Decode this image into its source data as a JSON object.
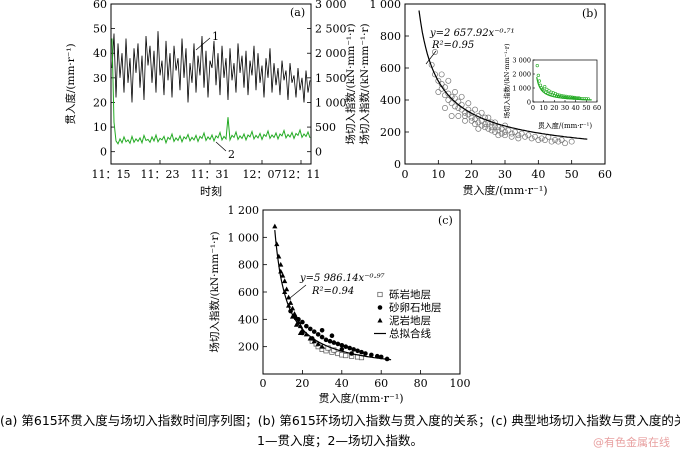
{
  "chart_data": [
    {
      "type": "line",
      "panel_label": "(a)",
      "xlabel": "时刻",
      "ylabel_left": "贯入度/(mm·r⁻¹)",
      "ylabel_right": "场切入指数/(kN·mm⁻¹·r)",
      "x_ticks": [
        "11：15",
        "11：23",
        "11：31",
        "12：07",
        "12：11"
      ],
      "y_left_ticks": [
        0,
        10,
        20,
        30,
        40,
        50,
        60
      ],
      "y_left_lim": [
        -5,
        60
      ],
      "y_right_ticks": [
        0,
        500,
        1000,
        1500,
        2000,
        2500,
        3000
      ],
      "y_right_lim": [
        -250,
        3000
      ],
      "grid": false,
      "series": [
        {
          "name": "1",
          "axis": "left",
          "color": "#000000",
          "values": [
            34,
            48,
            22,
            44,
            30,
            40,
            24,
            46,
            28,
            38,
            20,
            42,
            32,
            44,
            26,
            39,
            21,
            47,
            35,
            43,
            28,
            41,
            24,
            49,
            31,
            37,
            23,
            45,
            29,
            40,
            22,
            43,
            33,
            38,
            25,
            46,
            30,
            42,
            20,
            36,
            28,
            44,
            24,
            39,
            31,
            47,
            26,
            41,
            22,
            37,
            34,
            45,
            27,
            40,
            23,
            43,
            30,
            38,
            21,
            42,
            29,
            36,
            24,
            44,
            32,
            39,
            26,
            41,
            23,
            37,
            31,
            43,
            25,
            40,
            28,
            35,
            22,
            38,
            30,
            42,
            24,
            36,
            27,
            34,
            23,
            37,
            29,
            33,
            21,
            36,
            28,
            31,
            22,
            34,
            25,
            30,
            20,
            33,
            24,
            29
          ]
        },
        {
          "name": "2",
          "axis": "right",
          "color": "#22aa22",
          "values": [
            2300,
            600,
            220,
            160,
            260,
            180,
            300,
            200,
            240,
            170,
            310,
            190,
            260,
            210,
            280,
            180,
            330,
            230,
            250,
            190,
            300,
            220,
            340,
            200,
            270,
            240,
            310,
            180,
            290,
            250,
            360,
            210,
            280,
            230,
            320,
            200,
            300,
            260,
            350,
            220,
            290,
            240,
            330,
            210,
            310,
            270,
            380,
            230,
            300,
            250,
            340,
            220,
            320,
            280,
            390,
            240,
            310,
            260,
            700,
            240,
            330,
            290,
            400,
            250,
            320,
            270,
            360,
            240,
            340,
            300,
            410,
            260,
            330,
            280,
            370,
            250,
            350,
            310,
            420,
            270,
            340,
            290,
            380,
            260,
            360,
            320,
            430,
            280,
            350,
            300,
            390,
            270,
            370,
            330,
            440,
            290,
            360,
            310,
            400,
            280
          ]
        }
      ],
      "annotations": [
        "1",
        "2"
      ]
    },
    {
      "type": "scatter",
      "panel_label": "(b)",
      "xlabel": "贯入度/(mm·r⁻¹)",
      "ylabel": "场切入指数/(kN·mm⁻¹·r)",
      "x_ticks": [
        0,
        10,
        20,
        30,
        40,
        50,
        60
      ],
      "xlim": [
        0,
        60
      ],
      "y_ticks": [
        0,
        200,
        400,
        600,
        800,
        1000
      ],
      "ylim": [
        0,
        1000
      ],
      "fit_equation": "y=2 657.92x⁻⁰·⁷¹",
      "fit_r2": "R²=0.95",
      "fit": {
        "a": 2657.92,
        "b": -0.71
      },
      "points": [
        [
          8,
          620
        ],
        [
          9,
          560
        ],
        [
          10,
          450
        ],
        [
          10,
          520
        ],
        [
          11,
          500
        ],
        [
          11,
          470
        ],
        [
          12,
          430
        ],
        [
          12,
          480
        ],
        [
          13,
          440
        ],
        [
          13,
          400
        ],
        [
          14,
          420
        ],
        [
          14,
          380
        ],
        [
          15,
          360
        ],
        [
          15,
          410
        ],
        [
          16,
          350
        ],
        [
          16,
          390
        ],
        [
          17,
          340
        ],
        [
          17,
          370
        ],
        [
          18,
          320
        ],
        [
          18,
          300
        ],
        [
          19,
          310
        ],
        [
          19,
          340
        ],
        [
          20,
          290
        ],
        [
          20,
          270
        ],
        [
          21,
          280
        ],
        [
          21,
          250
        ],
        [
          22,
          260
        ],
        [
          22,
          300
        ],
        [
          23,
          240
        ],
        [
          23,
          270
        ],
        [
          24,
          250
        ],
        [
          24,
          230
        ],
        [
          25,
          220
        ],
        [
          25,
          260
        ],
        [
          26,
          230
        ],
        [
          26,
          210
        ],
        [
          27,
          240
        ],
        [
          27,
          200
        ],
        [
          28,
          210
        ],
        [
          28,
          230
        ],
        [
          29,
          190
        ],
        [
          29,
          220
        ],
        [
          30,
          200
        ],
        [
          30,
          180
        ],
        [
          31,
          210
        ],
        [
          32,
          190
        ],
        [
          32,
          170
        ],
        [
          33,
          200
        ],
        [
          34,
          180
        ],
        [
          34,
          160
        ],
        [
          35,
          190
        ],
        [
          36,
          170
        ],
        [
          37,
          180
        ],
        [
          38,
          160
        ],
        [
          39,
          170
        ],
        [
          40,
          150
        ],
        [
          41,
          160
        ],
        [
          42,
          150
        ],
        [
          43,
          170
        ],
        [
          44,
          140
        ],
        [
          45,
          150
        ],
        [
          46,
          140
        ],
        [
          47,
          150
        ],
        [
          48,
          130
        ],
        [
          50,
          140
        ],
        [
          12,
          350
        ],
        [
          14,
          300
        ],
        [
          16,
          300
        ],
        [
          18,
          270
        ],
        [
          20,
          320
        ],
        [
          22,
          220
        ],
        [
          24,
          290
        ],
        [
          26,
          260
        ],
        [
          28,
          180
        ],
        [
          30,
          240
        ],
        [
          9,
          700
        ],
        [
          11,
          560
        ],
        [
          13,
          520
        ],
        [
          15,
          450
        ],
        [
          17,
          420
        ],
        [
          19,
          380
        ],
        [
          21,
          340
        ],
        [
          23,
          320
        ],
        [
          25,
          290
        ],
        [
          27,
          260
        ]
      ],
      "inset": {
        "type": "scatter",
        "xlabel": "贯入度/(mm·r⁻¹)",
        "ylabel": "场切入指数/(kN·mm⁻¹·r)",
        "x_ticks": [
          0,
          10,
          20,
          30,
          40,
          50,
          60
        ],
        "xlim": [
          0,
          60
        ],
        "y_ticks": [
          0,
          1000,
          2000,
          3000
        ],
        "ylim": [
          0,
          3000
        ],
        "points": [
          [
            4,
            2600
          ],
          [
            5,
            1900
          ],
          [
            6,
            1500
          ],
          [
            7,
            1200
          ],
          [
            8,
            1000
          ],
          [
            9,
            900
          ],
          [
            10,
            800
          ],
          [
            12,
            700
          ],
          [
            14,
            600
          ],
          [
            16,
            550
          ],
          [
            18,
            500
          ],
          [
            20,
            450
          ],
          [
            22,
            420
          ],
          [
            24,
            400
          ],
          [
            26,
            380
          ],
          [
            28,
            350
          ],
          [
            30,
            330
          ],
          [
            32,
            310
          ],
          [
            34,
            300
          ],
          [
            36,
            290
          ],
          [
            38,
            280
          ],
          [
            40,
            270
          ],
          [
            42,
            260
          ],
          [
            44,
            250
          ],
          [
            46,
            240
          ],
          [
            48,
            235
          ],
          [
            50,
            230
          ],
          [
            52,
            220
          ],
          [
            11,
            1100
          ],
          [
            13,
            900
          ],
          [
            15,
            800
          ],
          [
            17,
            700
          ],
          [
            19,
            650
          ],
          [
            21,
            600
          ],
          [
            23,
            520
          ],
          [
            25,
            480
          ],
          [
            27,
            450
          ],
          [
            29,
            420
          ],
          [
            31,
            400
          ],
          [
            33,
            380
          ],
          [
            35,
            360
          ],
          [
            37,
            340
          ],
          [
            39,
            320
          ],
          [
            41,
            300
          ],
          [
            43,
            290
          ]
        ]
      }
    },
    {
      "type": "scatter",
      "panel_label": "(c)",
      "xlabel": "贯入度/(mm·r⁻¹)",
      "ylabel": "场切入指数/(kN·mm⁻¹·r)",
      "x_ticks": [
        0,
        20,
        40,
        60,
        80,
        100
      ],
      "xlim": [
        0,
        100
      ],
      "y_ticks": [
        "200",
        "400",
        "600",
        "800",
        "1 000",
        "1 200"
      ],
      "y_tick_values": [
        200,
        400,
        600,
        800,
        1000,
        1200
      ],
      "ylim": [
        0,
        1200
      ],
      "fit_equation": "y=5 986.14x⁻⁰·⁹⁷",
      "fit_r2": "R²=0.94",
      "fit": {
        "a": 5986.14,
        "b": -0.97
      },
      "legend_position": "right",
      "series": [
        {
          "name": "砾岩地层",
          "marker": "open-square",
          "points": [
            [
              25,
              240
            ],
            [
              28,
              200
            ],
            [
              30,
              180
            ],
            [
              32,
              170
            ],
            [
              35,
              160
            ],
            [
              38,
              150
            ],
            [
              40,
              140
            ],
            [
              42,
              135
            ],
            [
              45,
              130
            ],
            [
              48,
              125
            ],
            [
              50,
              120
            ],
            [
              27,
              220
            ],
            [
              33,
              190
            ],
            [
              36,
              175
            ]
          ]
        },
        {
          "name": "砂卵石地层",
          "marker": "filled-circle",
          "points": [
            [
              14,
              460
            ],
            [
              16,
              420
            ],
            [
              18,
              400
            ],
            [
              20,
              380
            ],
            [
              22,
              350
            ],
            [
              24,
              330
            ],
            [
              26,
              310
            ],
            [
              28,
              290
            ],
            [
              30,
              270
            ],
            [
              32,
              250
            ],
            [
              34,
              240
            ],
            [
              36,
              230
            ],
            [
              38,
              220
            ],
            [
              40,
              210
            ],
            [
              42,
              200
            ],
            [
              44,
              190
            ],
            [
              46,
              180
            ],
            [
              48,
              170
            ],
            [
              50,
              160
            ],
            [
              52,
              150
            ],
            [
              55,
              140
            ],
            [
              58,
              130
            ],
            [
              60,
              125
            ],
            [
              63,
              110
            ],
            [
              20,
              300
            ],
            [
              25,
              260
            ],
            [
              30,
              320
            ],
            [
              35,
              280
            ],
            [
              40,
              180
            ],
            [
              45,
              150
            ]
          ]
        },
        {
          "name": "泥岩地层",
          "marker": "filled-triangle",
          "points": [
            [
              6,
              1080
            ],
            [
              7,
              950
            ],
            [
              8,
              860
            ],
            [
              9,
              800
            ],
            [
              10,
              720
            ],
            [
              11,
              680
            ],
            [
              12,
              620
            ],
            [
              13,
              560
            ],
            [
              14,
              520
            ],
            [
              15,
              480
            ],
            [
              16,
              440
            ],
            [
              17,
              410
            ],
            [
              18,
              380
            ],
            [
              19,
              350
            ],
            [
              20,
              320
            ],
            [
              22,
              290
            ],
            [
              24,
              260
            ],
            [
              26,
              240
            ],
            [
              28,
              220
            ],
            [
              30,
              200
            ],
            [
              9,
              750
            ],
            [
              11,
              600
            ],
            [
              13,
              500
            ],
            [
              15,
              420
            ],
            [
              17,
              360
            ],
            [
              19,
              300
            ]
          ]
        }
      ],
      "fit_legend": "总拟合线"
    }
  ],
  "caption_line1": "(a) 第615环贯入度与场切入指数时间序列图；(b) 第615环场切入指数与贯入度的关系；(c) 典型地场切入指数与贯入度的关系",
  "caption_line2": "1—贯入度；2—场切入指数。",
  "watermark": "@有色金属在线"
}
